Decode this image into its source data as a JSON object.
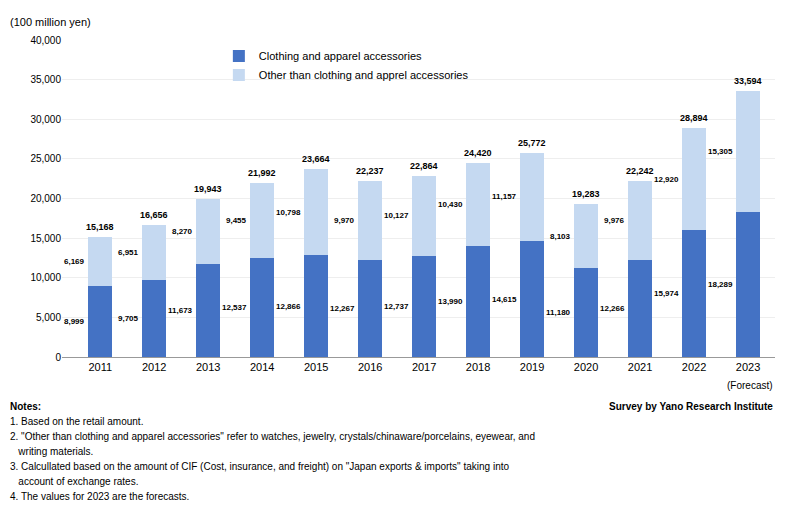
{
  "chart_data": {
    "type": "bar",
    "stacked": true,
    "categories": [
      "2011",
      "2012",
      "2013",
      "2014",
      "2015",
      "2016",
      "2017",
      "2018",
      "2019",
      "2020",
      "2021",
      "2022",
      "2023"
    ],
    "series": [
      {
        "name": "Clothing and apparel accessories",
        "color": "#4472C4",
        "values": [
          8999,
          9705,
          11673,
          12537,
          12866,
          12267,
          12737,
          13990,
          14615,
          11180,
          12266,
          15974,
          18289
        ],
        "value_labels": [
          "8,999",
          "9,705",
          "11,673",
          "12,537",
          "12,866",
          "12,267",
          "12,737",
          "13,990",
          "14,615",
          "11,180",
          "12,266",
          "15,974",
          "18,289"
        ]
      },
      {
        "name": "Other than clothing and apprel accessories",
        "color": "#C5D9F1",
        "values": [
          6169,
          6951,
          8270,
          9455,
          10798,
          9970,
          10127,
          10430,
          11157,
          8103,
          9976,
          12920,
          15305
        ],
        "value_labels": [
          "6,169",
          "6,951",
          "8,270",
          "9,455",
          "10,798",
          "9,970",
          "10,127",
          "10,430",
          "11,157",
          "8,103",
          "9,976",
          "12,920",
          "15,305"
        ]
      }
    ],
    "totals": [
      15168,
      16656,
      19943,
      21992,
      23664,
      22237,
      22864,
      24420,
      25772,
      19283,
      22242,
      28894,
      33594
    ],
    "total_labels": [
      "15,168",
      "16,656",
      "19,943",
      "21,992",
      "23,664",
      "22,237",
      "22,864",
      "24,420",
      "25,772",
      "19,283",
      "22,242",
      "28,894",
      "33,594"
    ],
    "ylabel": "(100 million yen)",
    "ylim": [
      0,
      40000
    ],
    "yticks": [
      0,
      {
        "value": 5000,
        "label": "5,000"
      },
      {
        "value": 10000,
        "label": "10,000"
      },
      {
        "value": 15000,
        "label": "15,000"
      },
      {
        "value": 20000,
        "label": "20,000"
      },
      {
        "value": 25000,
        "label": "25,000"
      },
      {
        "value": 30000,
        "label": "30,000"
      },
      {
        "value": 35000,
        "label": "35,000"
      },
      {
        "value": 40000,
        "label": "40,000"
      }
    ],
    "grid": true,
    "legend": "upper left",
    "data_labels": true,
    "forecast_label": "(Forecast)",
    "notes": [
      "Notes:",
      "1. Based on the retail amount.",
      "2. \"Other than clothing and apparel accessories\" refer to watches, jewelry, crystals/chinaware/porcelains, eyewear, and",
      "   writing materials.",
      "3. Calcullated based on the amount of CIF (Cost, insurance, and freight) on \"Japan exports & imports\" taking into",
      "   account of exchange rates.",
      "4. The values for 2023 are the forecasts."
    ],
    "source": "Survey by Yano Research Institute"
  }
}
